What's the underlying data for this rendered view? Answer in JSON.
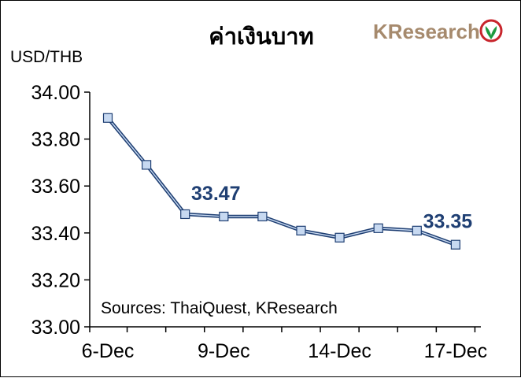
{
  "title": "ค่าเงินบาท",
  "logo": {
    "text": "KResearch",
    "color": "#a68a6d",
    "emblem_color": "#1d9a3e",
    "emblem_ring_color": "#c8252c"
  },
  "source_note": "Sources: ThaiQuest, KResearch",
  "colors": {
    "line": "#1f3f73",
    "marker_fill": "#c7d9f1",
    "marker_edge": "#1f3f73",
    "label": "#1f3f73",
    "axis": "#000000"
  },
  "chart_data": {
    "type": "line",
    "ylabel": "USD/THB",
    "ylim": [
      33.0,
      34.0
    ],
    "yticks": [
      "34.00",
      "33.80",
      "33.60",
      "33.40",
      "33.20",
      "33.00"
    ],
    "x_tick_labels": [
      "6-Dec",
      "9-Dec",
      "14-Dec",
      "17-Dec"
    ],
    "x": [
      "6-Dec",
      "",
      "",
      "9-Dec",
      "",
      "",
      "14-Dec",
      "",
      "",
      "17-Dec"
    ],
    "series": [
      {
        "values": [
          33.89,
          33.69,
          33.48,
          33.47,
          33.47,
          33.41,
          33.38,
          33.42,
          33.41,
          33.35
        ]
      }
    ],
    "data_labels": [
      {
        "index": 3,
        "text": "33.47"
      },
      {
        "index": 9,
        "text": "33.35"
      }
    ],
    "grid": false,
    "legend": "none"
  }
}
